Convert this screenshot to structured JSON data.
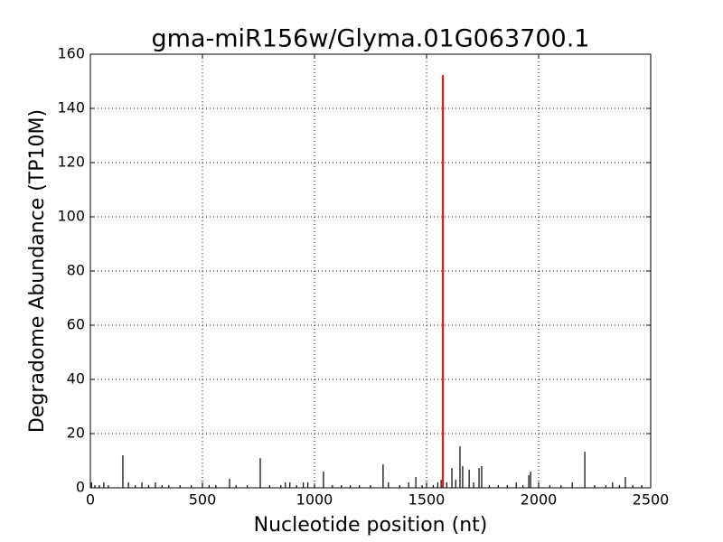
{
  "chart_data": {
    "type": "spike",
    "title": "gma-miR156w/Glyma.01G063700.1",
    "xlabel": "Nucleotide position (nt)",
    "ylabel": "Degradome Abundance (TP10M)",
    "xlim": [
      0,
      2500
    ],
    "xticks": [
      0,
      500,
      1000,
      1500,
      2000,
      2500
    ],
    "ylim": [
      0,
      160
    ],
    "yticks": [
      0,
      20,
      40,
      60,
      80,
      100,
      120,
      140,
      160
    ],
    "grid": true,
    "series": [
      {
        "color": "#000000",
        "x": [
          5,
          20,
          40,
          60,
          80,
          145,
          170,
          200,
          230,
          260,
          290,
          320,
          350,
          400,
          450,
          500,
          530,
          560,
          621,
          650,
          700,
          758,
          800,
          850,
          870,
          890,
          920,
          950,
          970,
          1000,
          1040,
          1080,
          1120,
          1160,
          1200,
          1250,
          1306,
          1330,
          1380,
          1420,
          1452,
          1480,
          1500,
          1530,
          1550,
          1565,
          1590,
          1613,
          1630,
          1649,
          1661,
          1690,
          1710,
          1734,
          1746,
          1780,
          1820,
          1860,
          1900,
          1930,
          1956,
          1964,
          2000,
          2050,
          2100,
          2150,
          2206,
          2250,
          2300,
          2330,
          2360,
          2387,
          2420,
          2460
        ],
        "values": [
          2,
          1,
          1,
          2,
          1,
          12,
          2,
          1,
          2,
          1,
          2,
          1,
          1,
          1,
          1,
          2,
          1,
          1,
          3.3,
          1,
          1,
          11,
          1,
          1,
          2,
          2,
          1,
          2,
          2,
          1,
          6,
          1,
          1,
          1,
          1,
          1,
          8.7,
          2,
          1,
          2,
          4,
          1,
          2,
          1,
          2,
          3,
          2,
          7.3,
          3,
          15.3,
          8,
          6.7,
          2,
          7.3,
          8,
          1,
          1,
          1,
          2,
          1,
          4.7,
          6,
          2,
          1,
          1,
          2,
          13.3,
          1,
          1,
          2,
          1,
          4,
          1,
          1
        ]
      },
      {
        "color": "#ff0000",
        "x": [
          1573
        ],
        "values": [
          152.3
        ]
      }
    ]
  }
}
